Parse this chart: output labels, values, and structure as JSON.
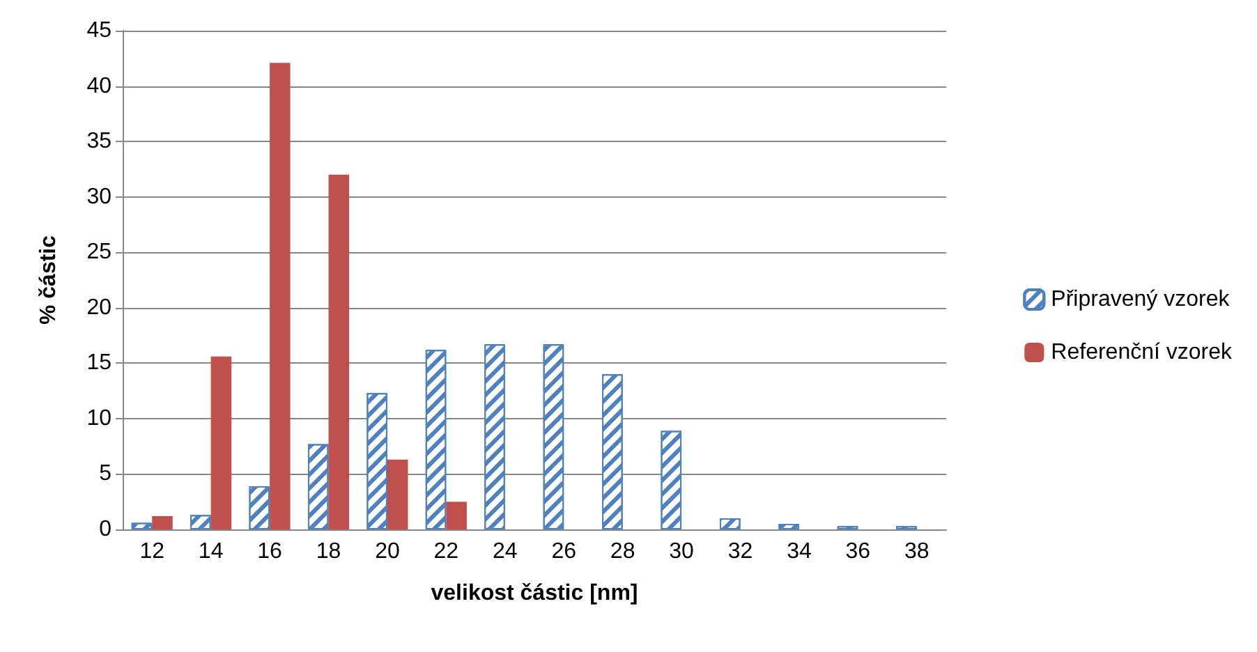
{
  "chart_data": {
    "type": "bar",
    "xlabel": "velikost částic [nm]",
    "ylabel": "% částic",
    "categories": [
      "12",
      "14",
      "16",
      "18",
      "20",
      "22",
      "24",
      "26",
      "28",
      "30",
      "32",
      "34",
      "36",
      "38"
    ],
    "series": [
      {
        "name": "Připravený vzorek",
        "color": "#4f81bd",
        "values": [
          0.6,
          1.3,
          3.9,
          7.7,
          12.3,
          16.2,
          16.7,
          16.7,
          14.0,
          8.9,
          1.0,
          0.5,
          0.3,
          0.3
        ]
      },
      {
        "name": "Referenční vzorek",
        "color": "#c0504d",
        "values": [
          1.2,
          15.6,
          42.1,
          32.0,
          6.3,
          2.5,
          0,
          0,
          0,
          0,
          0,
          0,
          0,
          0
        ]
      }
    ],
    "ylim": [
      0,
      45
    ],
    "yticks": [
      0,
      5,
      10,
      15,
      20,
      25,
      30,
      35,
      40,
      45
    ],
    "grid": "y",
    "legend": "right"
  }
}
